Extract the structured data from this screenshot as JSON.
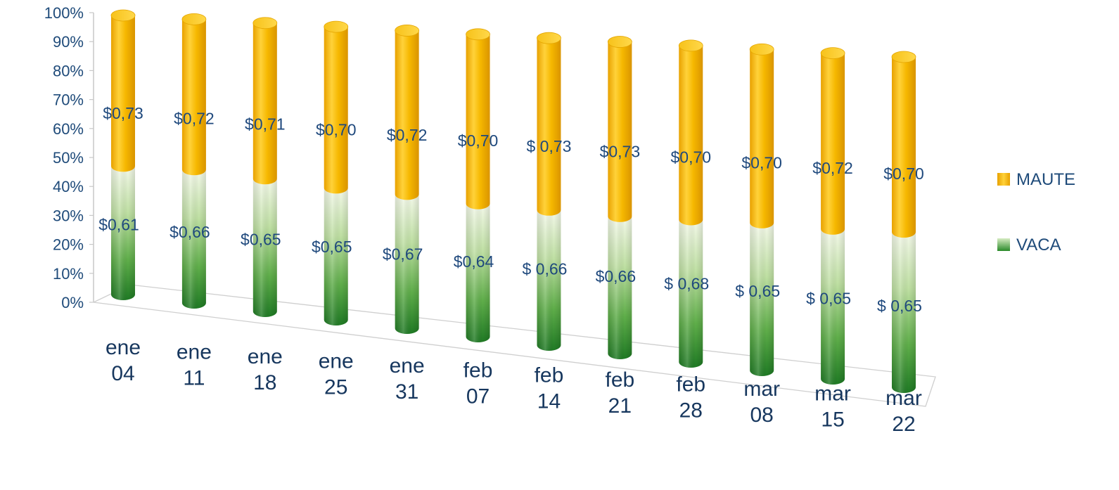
{
  "chart_data": {
    "type": "bar",
    "stacked": true,
    "percent_stacked": true,
    "style": "3d-cylinder",
    "title": "",
    "xlabel": "",
    "ylabel": "",
    "ylim": [
      0,
      100
    ],
    "y_ticks": [
      "0%",
      "10%",
      "20%",
      "30%",
      "40%",
      "50%",
      "60%",
      "70%",
      "80%",
      "90%",
      "100%"
    ],
    "legend_position": "right",
    "categories": [
      [
        "ene",
        "04"
      ],
      [
        "ene",
        "11"
      ],
      [
        "ene",
        "18"
      ],
      [
        "ene",
        "25"
      ],
      [
        "ene",
        "31"
      ],
      [
        "feb",
        "07"
      ],
      [
        "feb",
        "14"
      ],
      [
        "feb",
        "21"
      ],
      [
        "feb",
        "28"
      ],
      [
        "mar",
        "08"
      ],
      [
        "mar",
        "15"
      ],
      [
        "mar",
        "22"
      ]
    ],
    "series": [
      {
        "name": "VACA",
        "color": "#3f9a3a",
        "share_percent": [
          46,
          47,
          46,
          45,
          45,
          44,
          44,
          44,
          45,
          46,
          46,
          47
        ],
        "data_labels": [
          "$0,61",
          "$0,66",
          "$0,65",
          "$0,65",
          "$0,67",
          "$0,64",
          "$ 0,66",
          "$0,66",
          "$ 0,68",
          "$ 0,65",
          "$ 0,65",
          "$ 0,65"
        ]
      },
      {
        "name": "MAUTE",
        "color": "#f3b300",
        "share_percent": [
          54,
          53,
          54,
          55,
          55,
          56,
          56,
          56,
          55,
          54,
          54,
          53
        ],
        "data_labels": [
          "$0,73",
          "$0,72",
          "$0,71",
          "$0,70",
          "$0,72",
          "$0,70",
          "$ 0,73",
          "$0,73",
          "$0,70",
          "$0,70",
          "$0,72",
          "$0,70"
        ]
      }
    ]
  }
}
